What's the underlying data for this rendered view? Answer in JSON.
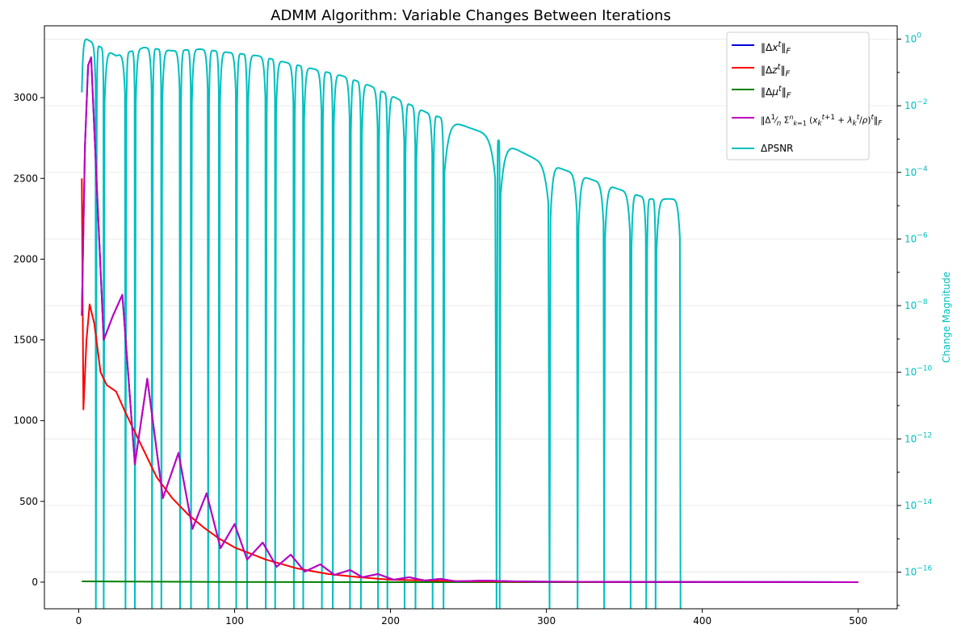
{
  "chart_data": {
    "type": "line",
    "title": "ADMM Algorithm: Variable Changes Between Iterations",
    "xlabel": "",
    "ylabel_left": "",
    "ylabel_right": "Change Magnitude",
    "xlim": [
      -22,
      525
    ],
    "ylim_left": [
      -165,
      3445
    ],
    "ylim_right_log10": [
      -17.1,
      0.4
    ],
    "xticks": [
      0,
      100,
      200,
      300,
      400,
      500
    ],
    "yticks_left": [
      0,
      500,
      1000,
      1500,
      2000,
      2500,
      3000
    ],
    "yticks_right_exp": [
      0,
      -2,
      -4,
      -6,
      -8,
      -10,
      -12,
      -14,
      -16
    ],
    "grid": "horizontal, light",
    "legend_position": "top-right",
    "colors": {
      "dx": "#0000dd",
      "dz": "#ff0000",
      "dmu": "#008000",
      "davg": "#bf00bf",
      "dpsnr": "#00bfbf",
      "right_axis": "#00bfbf"
    },
    "series": [
      {
        "key": "dx",
        "name": "‖Δx^t‖_F",
        "axis": "left",
        "note": "overlaps the purple series",
        "x": [
          2,
          4,
          6,
          8,
          10,
          16,
          22,
          28,
          36,
          44,
          54,
          64,
          73,
          82,
          91,
          100,
          108,
          118,
          127,
          136,
          145,
          155,
          164,
          174,
          182,
          192,
          202,
          212,
          222,
          232,
          242,
          260,
          280,
          300,
          350,
          400,
          450,
          500
        ],
        "y": [
          1650,
          2700,
          3200,
          3250,
          2800,
          1500,
          1650,
          1780,
          730,
          1260,
          520,
          800,
          330,
          550,
          210,
          360,
          140,
          245,
          95,
          170,
          65,
          110,
          45,
          75,
          30,
          50,
          15,
          30,
          10,
          20,
          5,
          10,
          5,
          3,
          2,
          1,
          1,
          0
        ]
      },
      {
        "key": "dz",
        "name": "‖Δz^t‖_F",
        "axis": "left",
        "x": [
          2,
          3,
          5,
          7,
          10,
          14,
          18,
          24,
          30,
          40,
          50,
          60,
          70,
          80,
          90,
          100,
          120,
          140,
          160,
          180,
          200,
          250,
          300,
          400,
          500
        ],
        "y": [
          2500,
          1070,
          1500,
          1720,
          1600,
          1300,
          1220,
          1180,
          1050,
          850,
          650,
          520,
          420,
          340,
          270,
          215,
          140,
          85,
          50,
          30,
          15,
          5,
          2,
          1,
          0
        ]
      },
      {
        "key": "dmu",
        "name": "‖Δμ^t‖_F",
        "axis": "left",
        "x": [
          2,
          100,
          200,
          300,
          400,
          500
        ],
        "y": [
          5,
          1,
          0,
          0,
          0,
          0
        ]
      },
      {
        "key": "davg",
        "name": "‖Δ(1/n) Σ_{k=1}^{n} (x_k^{t+1} + λ_k^t/ρ)^t‖_F",
        "axis": "left",
        "x": [
          2,
          4,
          6,
          8,
          10,
          16,
          22,
          28,
          36,
          44,
          54,
          64,
          73,
          82,
          91,
          100,
          108,
          118,
          127,
          136,
          145,
          155,
          164,
          174,
          182,
          192,
          202,
          212,
          222,
          232,
          242,
          260,
          280,
          300,
          350,
          400,
          450,
          500
        ],
        "y": [
          1650,
          2700,
          3200,
          3250,
          2800,
          1500,
          1650,
          1780,
          730,
          1260,
          520,
          800,
          330,
          550,
          210,
          360,
          140,
          245,
          95,
          170,
          65,
          110,
          45,
          75,
          30,
          50,
          15,
          30,
          10,
          20,
          5,
          10,
          5,
          3,
          2,
          1,
          1,
          0
        ]
      },
      {
        "key": "dpsnr",
        "name": "ΔPSNR",
        "axis": "right",
        "scale": "log",
        "hump_peaks_x": [
          5,
          24,
          42,
          60,
          78,
          96,
          115,
          133,
          151,
          169,
          187,
          205,
          223,
          241,
          259,
          276,
          293,
          310,
          328,
          346,
          366
        ],
        "hump_peaks_log10": [
          0,
          -0.5,
          -0.25,
          -0.35,
          -0.3,
          -0.4,
          -0.5,
          -0.7,
          -0.9,
          -1.1,
          -1.4,
          -1.8,
          -2.2,
          -2.5,
          -2.8,
          -3.2,
          -3.6,
          -3.9,
          -4.2,
          -4.5,
          -4.8
        ],
        "dip_x": [
          11,
          16,
          30,
          36,
          47,
          53,
          65,
          72,
          83,
          90,
          101,
          108,
          120,
          126,
          138,
          144,
          156,
          163,
          174,
          181,
          192,
          198,
          209,
          216,
          227,
          234,
          268,
          270,
          302,
          320,
          337,
          354,
          364,
          370,
          386
        ],
        "end_x": 386
      }
    ]
  },
  "legend": {
    "entries": [
      {
        "key": "dx",
        "label_html": "‖Δ<i>x</i><sup><i>t</i></sup>‖<sub><i>F</i></sub>"
      },
      {
        "key": "dz",
        "label_html": "‖Δ<i>z</i><sup><i>t</i></sup>‖<sub><i>F</i></sub>"
      },
      {
        "key": "dmu",
        "label_html": "‖Δ<i>μ</i><sup><i>t</i></sup>‖<sub><i>F</i></sub>"
      },
      {
        "key": "davg",
        "label_html": "‖Δ<sup>1</sup>⁄<sub><i>n</i></sub> Σ<sup style='font-size:8px'><i>n</i></sup><sub style='font-size:8px'><i>k</i>=1</sub> (<i>x</i><sub><i>k</i></sub><sup><i>t</i>+1</sup> + <i>λ</i><sub><i>k</i></sub><sup><i>t</i></sup>/<i>ρ</i>)<sup><i>t</i></sup>‖<sub><i>F</i></sub>"
      },
      {
        "key": "dpsnr",
        "label_html": "ΔPSNR"
      }
    ]
  }
}
